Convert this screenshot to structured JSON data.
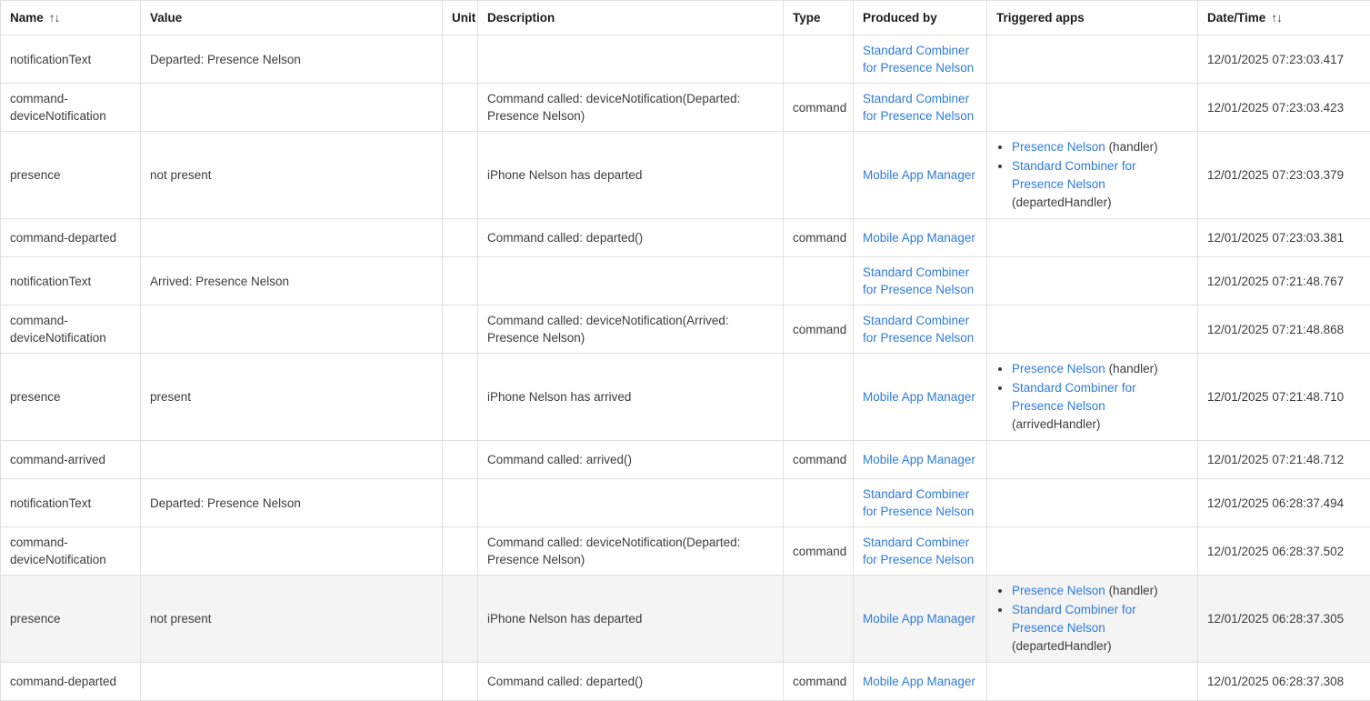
{
  "theme": {
    "link_color": "#2f7bd9",
    "border_color": "#e0e0e0",
    "header_text_color": "#1b1b1b",
    "body_text_color": "#3c3c3c",
    "highlight_row_color": "#f4f4f4",
    "background_color": "#ffffff"
  },
  "table": {
    "sort_icon": "↑↓",
    "columns": [
      {
        "label": "Name",
        "sortable": true
      },
      {
        "label": "Value",
        "sortable": false
      },
      {
        "label": "Unit",
        "sortable": false
      },
      {
        "label": "Description",
        "sortable": false
      },
      {
        "label": "Type",
        "sortable": false
      },
      {
        "label": "Produced by",
        "sortable": false
      },
      {
        "label": "Triggered apps",
        "sortable": false
      },
      {
        "label": "Date/Time",
        "sortable": true
      }
    ],
    "rows": [
      {
        "name": "notificationText",
        "value": "Departed: Presence Nelson",
        "unit": "",
        "description": "",
        "type": "",
        "produced_by": "Standard Combiner for Presence Nelson",
        "triggered": [],
        "datetime": "12/01/2025 07:23:03.417",
        "highlighted": false
      },
      {
        "name": "command-deviceNotification",
        "value": "",
        "unit": "",
        "description": "Command called: deviceNotification(Departed: Presence Nelson)",
        "type": "command",
        "produced_by": "Standard Combiner for Presence Nelson",
        "triggered": [],
        "datetime": "12/01/2025 07:23:03.423",
        "highlighted": false
      },
      {
        "name": "presence",
        "value": "not present",
        "unit": "",
        "description": "iPhone Nelson has departed",
        "type": "",
        "produced_by": "Mobile App Manager",
        "triggered": [
          {
            "app": "Presence Nelson",
            "note": " (handler)"
          },
          {
            "app": "Standard Combiner for Presence Nelson",
            "note": " (departedHandler)"
          }
        ],
        "datetime": "12/01/2025 07:23:03.379",
        "highlighted": false
      },
      {
        "name": "command-departed",
        "value": "",
        "unit": "",
        "description": "Command called: departed()",
        "type": "command",
        "produced_by": "Mobile App Manager",
        "triggered": [],
        "datetime": "12/01/2025 07:23:03.381",
        "highlighted": false
      },
      {
        "name": "notificationText",
        "value": "Arrived: Presence Nelson",
        "unit": "",
        "description": "",
        "type": "",
        "produced_by": "Standard Combiner for Presence Nelson",
        "triggered": [],
        "datetime": "12/01/2025 07:21:48.767",
        "highlighted": false
      },
      {
        "name": "command-deviceNotification",
        "value": "",
        "unit": "",
        "description": "Command called: deviceNotification(Arrived: Presence Nelson)",
        "type": "command",
        "produced_by": "Standard Combiner for Presence Nelson",
        "triggered": [],
        "datetime": "12/01/2025 07:21:48.868",
        "highlighted": false
      },
      {
        "name": "presence",
        "value": "present",
        "unit": "",
        "description": "iPhone Nelson has arrived",
        "type": "",
        "produced_by": "Mobile App Manager",
        "triggered": [
          {
            "app": "Presence Nelson",
            "note": " (handler)"
          },
          {
            "app": "Standard Combiner for Presence Nelson",
            "note": " (arrivedHandler)"
          }
        ],
        "datetime": "12/01/2025 07:21:48.710",
        "highlighted": false
      },
      {
        "name": "command-arrived",
        "value": "",
        "unit": "",
        "description": "Command called: arrived()",
        "type": "command",
        "produced_by": "Mobile App Manager",
        "triggered": [],
        "datetime": "12/01/2025 07:21:48.712",
        "highlighted": false
      },
      {
        "name": "notificationText",
        "value": "Departed: Presence Nelson",
        "unit": "",
        "description": "",
        "type": "",
        "produced_by": "Standard Combiner for Presence Nelson",
        "triggered": [],
        "datetime": "12/01/2025 06:28:37.494",
        "highlighted": false
      },
      {
        "name": "command-deviceNotification",
        "value": "",
        "unit": "",
        "description": "Command called: deviceNotification(Departed: Presence Nelson)",
        "type": "command",
        "produced_by": "Standard Combiner for Presence Nelson",
        "triggered": [],
        "datetime": "12/01/2025 06:28:37.502",
        "highlighted": false
      },
      {
        "name": "presence",
        "value": "not present",
        "unit": "",
        "description": "iPhone Nelson has departed",
        "type": "",
        "produced_by": "Mobile App Manager",
        "triggered": [
          {
            "app": "Presence Nelson",
            "note": " (handler)"
          },
          {
            "app": "Standard Combiner for Presence Nelson",
            "note": " (departedHandler)"
          }
        ],
        "datetime": "12/01/2025 06:28:37.305",
        "highlighted": true
      },
      {
        "name": "command-departed",
        "value": "",
        "unit": "",
        "description": "Command called: departed()",
        "type": "command",
        "produced_by": "Mobile App Manager",
        "triggered": [],
        "datetime": "12/01/2025 06:28:37.308",
        "highlighted": false
      }
    ]
  }
}
